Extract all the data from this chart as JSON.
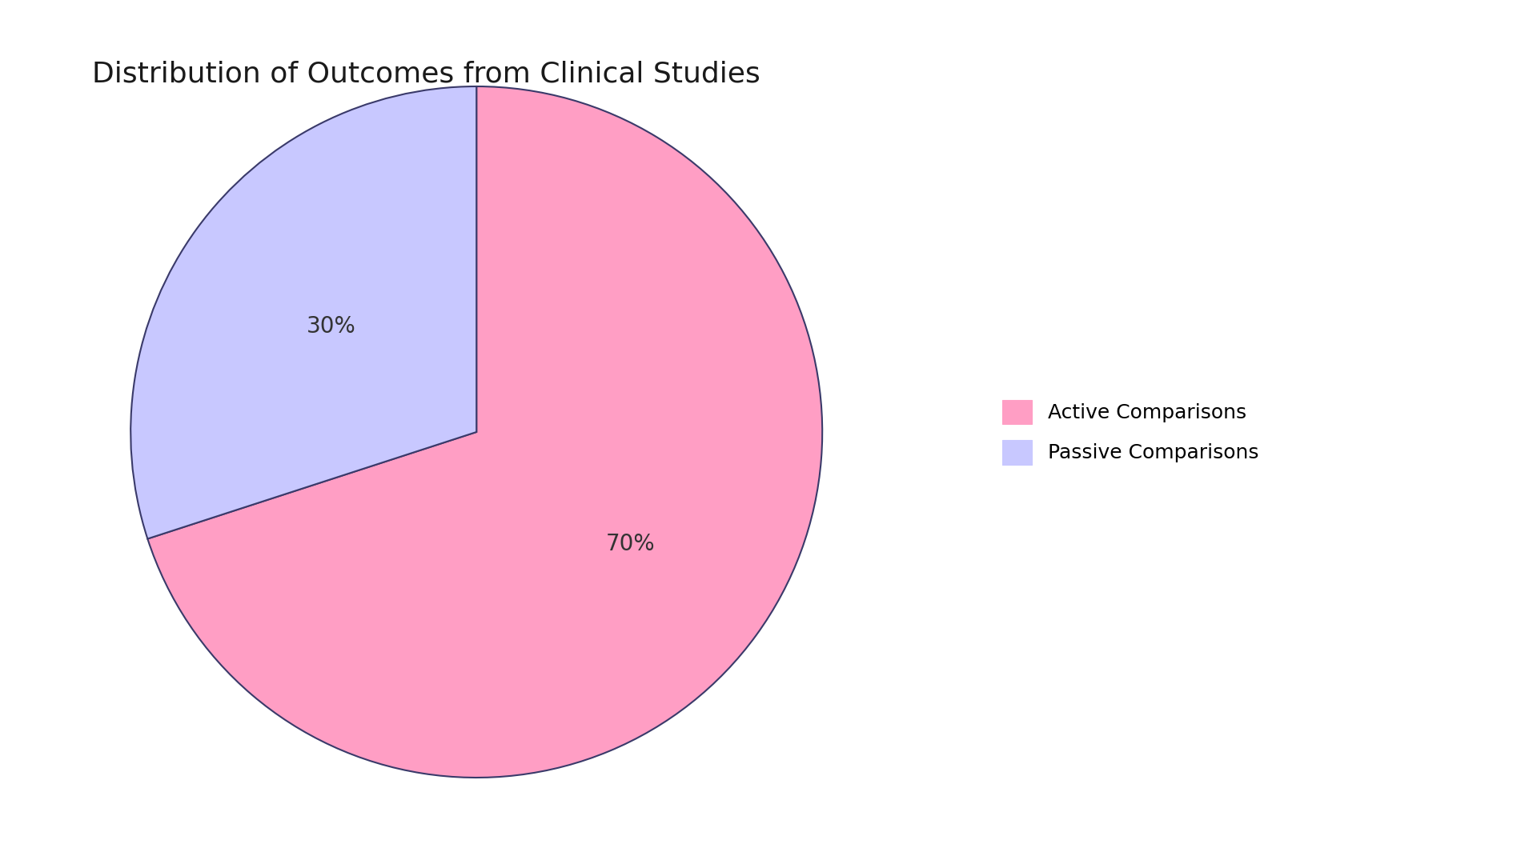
{
  "title": "Distribution of Outcomes from Clinical Studies",
  "slices": [
    70,
    30
  ],
  "labels": [
    "Active Comparisons",
    "Passive Comparisons"
  ],
  "colors": [
    "#FF9EC4",
    "#C8C8FF"
  ],
  "edge_color": "#3A3A6A",
  "edge_width": 1.5,
  "startangle": 90,
  "title_fontsize": 26,
  "title_color": "#1a1a1a",
  "pct_fontsize": 20,
  "legend_fontsize": 18,
  "background_color": "#ffffff"
}
